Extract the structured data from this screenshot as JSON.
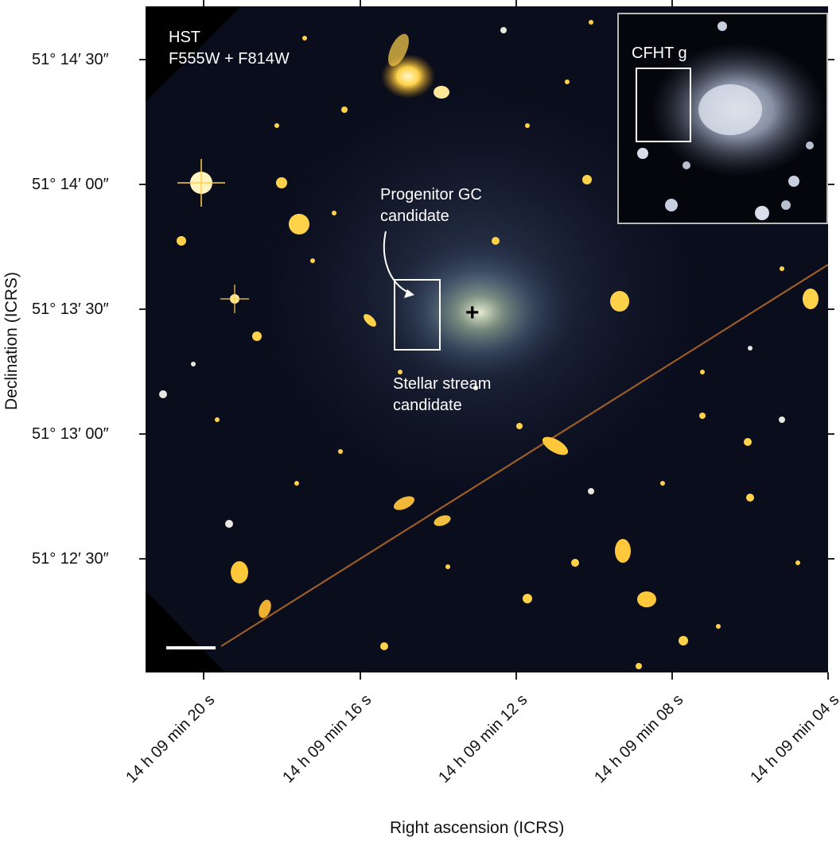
{
  "image": {
    "panel_label_line1": "HST",
    "panel_label_line2": "F555W + F814W",
    "inset_label": "CFHT g",
    "annotation_progenitor_line1": "Progenitor GC",
    "annotation_progenitor_line2": "candidate",
    "annotation_stream_line1": "Stellar stream",
    "annotation_stream_line2": "candidate",
    "center_marker": "+"
  },
  "axes": {
    "y_title": "Declination (ICRS)",
    "x_title": "Right ascension (ICRS)",
    "y_ticks": [
      "51° 14′ 30″",
      "51° 14′ 00″",
      "51° 13′ 30″",
      "51° 13′ 00″",
      "51° 12′ 30″"
    ],
    "x_ticks": [
      "14 h 09 min 20 s",
      "14 h 09 min 16 s",
      "14 h 09 min 12 s",
      "14 h 09 min 08 s",
      "14 h 09 min 04 s"
    ]
  },
  "colors": {
    "background_sky": "#0a0d1c",
    "galaxy_yellow": "#ffd24a",
    "galaxy_orange": "#f0a020",
    "stream_blue": "#8fb0d8",
    "annotation_white": "#ffffff",
    "inset_frame": "#b9b9b9",
    "inset_glow": "#c8d0e0"
  }
}
